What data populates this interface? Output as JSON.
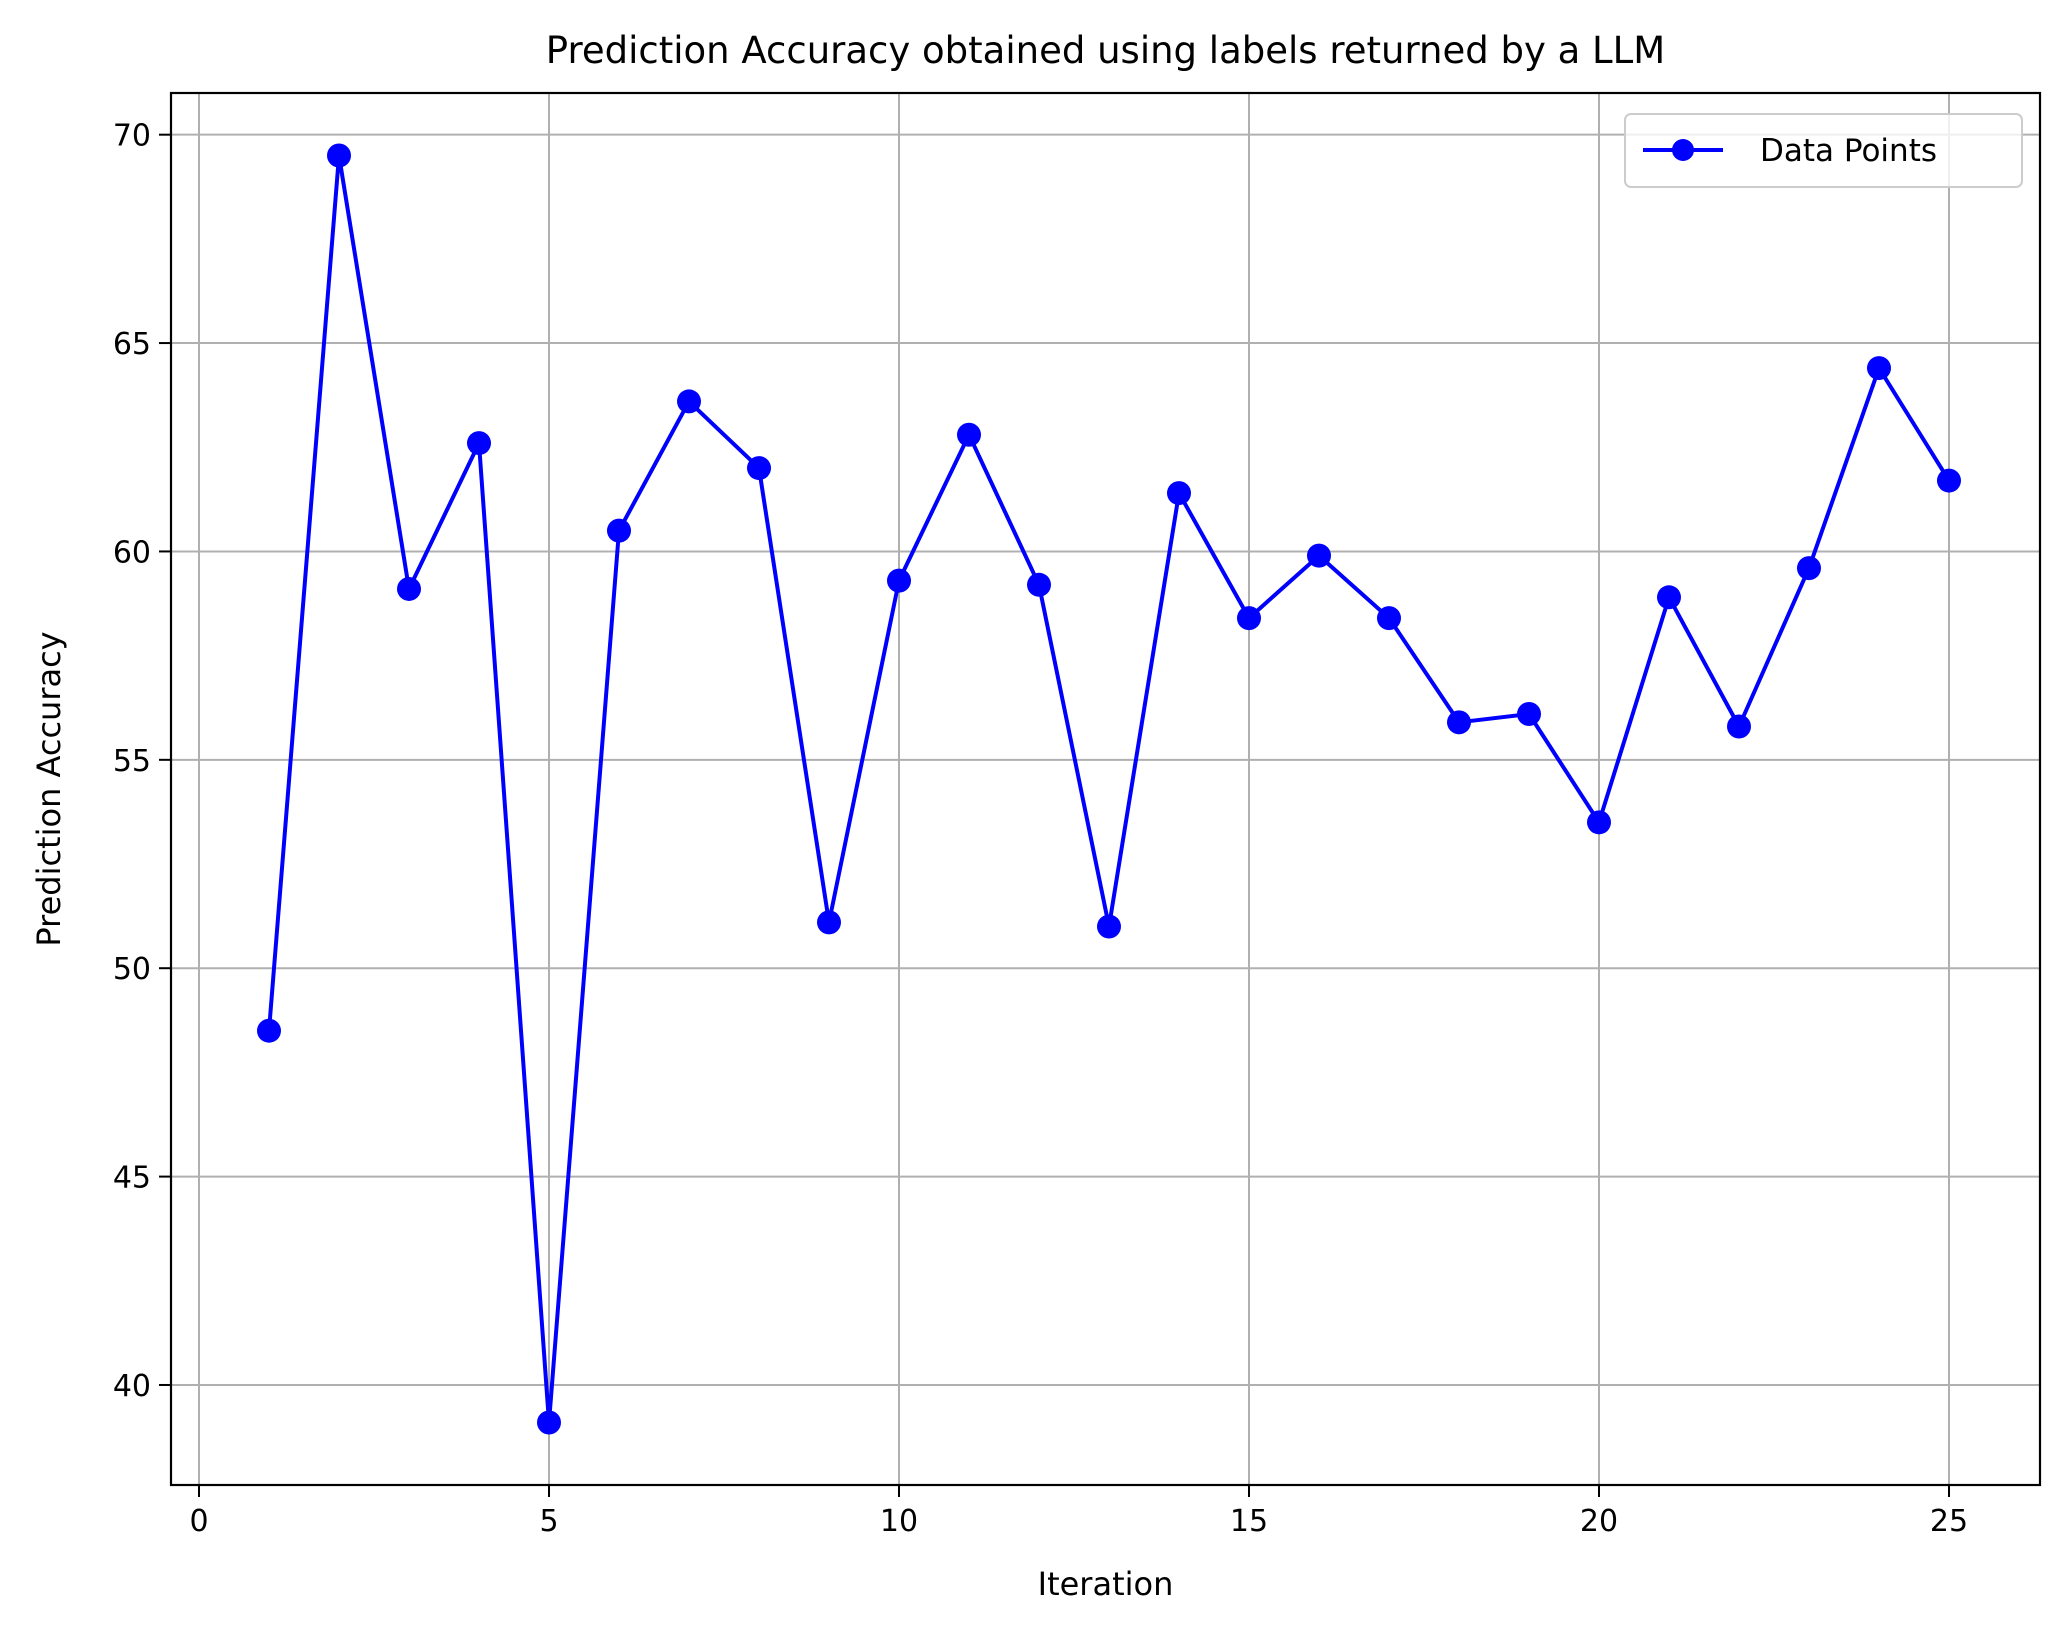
{
  "chart_data": {
    "type": "line",
    "title": "Prediction Accuracy obtained using labels returned by a LLM",
    "xlabel": "Iteration",
    "ylabel": "Prediction Accuracy",
    "xlim": [
      -0.4,
      26.3
    ],
    "ylim": [
      37.6,
      71.0
    ],
    "x_ticks": [
      0,
      5,
      10,
      15,
      20,
      25
    ],
    "x_tick_labels": [
      "0",
      "5",
      "10",
      "15",
      "20",
      "25"
    ],
    "y_ticks": [
      40,
      45,
      50,
      55,
      60,
      65,
      70
    ],
    "y_tick_labels": [
      "40",
      "45",
      "50",
      "55",
      "60",
      "65",
      "70"
    ],
    "grid": true,
    "legend": {
      "position": "top-right",
      "entries": [
        "Data Points"
      ]
    },
    "series": [
      {
        "name": "Data Points",
        "color": "#0000ff",
        "marker": "circle",
        "x": [
          1,
          2,
          3,
          4,
          5,
          6,
          7,
          8,
          9,
          10,
          11,
          12,
          13,
          14,
          15,
          16,
          17,
          18,
          19,
          20,
          21,
          22,
          23,
          24,
          25
        ],
        "y": [
          48.5,
          69.5,
          59.1,
          62.6,
          39.1,
          60.5,
          63.6,
          62.0,
          51.1,
          59.3,
          62.8,
          59.2,
          51.0,
          61.4,
          58.4,
          59.9,
          58.4,
          55.9,
          56.1,
          53.5,
          58.9,
          55.8,
          59.6,
          64.4,
          61.7
        ]
      }
    ]
  }
}
